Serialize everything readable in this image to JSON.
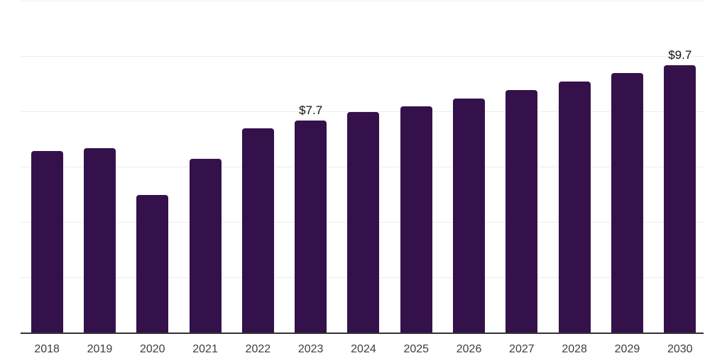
{
  "chart_style": {
    "background": "#ffffff",
    "bar_color": "#35114b",
    "gridline_color": "#ededed",
    "axis_line_color": "#333333",
    "tick_label_color": "#3d3d3d",
    "data_label_color": "#111111"
  },
  "chart_data": {
    "type": "bar",
    "title": "",
    "xlabel": "",
    "ylabel": "",
    "categories": [
      "2018",
      "2019",
      "2020",
      "2021",
      "2022",
      "2023",
      "2024",
      "2025",
      "2026",
      "2027",
      "2028",
      "2029",
      "2030"
    ],
    "values": [
      6.6,
      6.7,
      5.0,
      6.3,
      7.4,
      7.7,
      8.0,
      8.2,
      8.5,
      8.8,
      9.1,
      9.4,
      9.7
    ],
    "data_labels": [
      "",
      "",
      "",
      "",
      "",
      "$7.7",
      "",
      "",
      "",
      "",
      "",
      "",
      "$9.7"
    ],
    "ylim": [
      0,
      12
    ],
    "gridline_values": [
      2,
      4,
      6,
      8,
      10,
      12
    ],
    "grid": "horizontal",
    "legend": "none"
  }
}
